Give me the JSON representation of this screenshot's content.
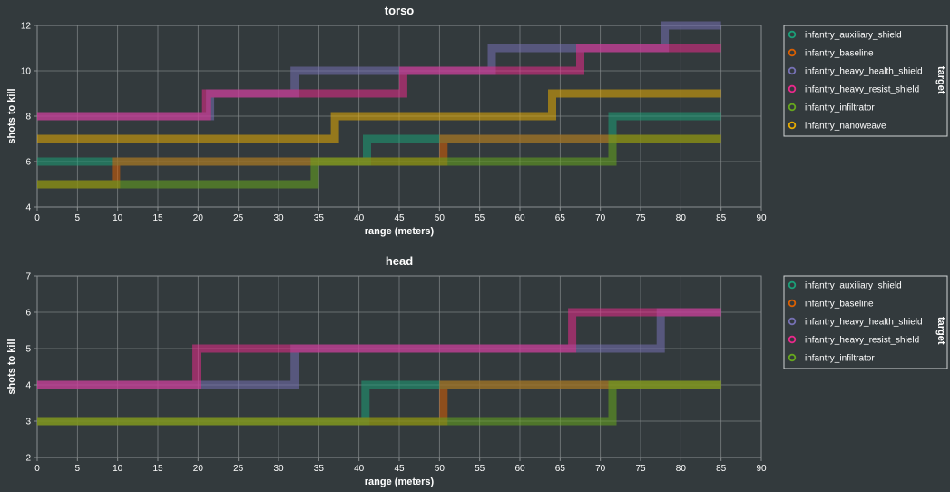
{
  "legend_title": "target",
  "colors": {
    "infantry_auxiliary_shield": "#1b9e77",
    "infantry_baseline": "#d95f02",
    "infantry_heavy_health_shield": "#7570b3",
    "infantry_heavy_resist_shield": "#e7298a",
    "infantry_infiltrator": "#66a61e",
    "infantry_nanoweave": "#e6ab02"
  },
  "chart_data": [
    {
      "type": "line",
      "step": true,
      "title": "torso",
      "xlabel": "range (meters)",
      "ylabel": "shots to kill",
      "xlim": [
        0,
        90
      ],
      "ylim": [
        4,
        12
      ],
      "xticks": [
        "0",
        "5",
        "10",
        "15",
        "20",
        "25",
        "30",
        "35",
        "40",
        "45",
        "50",
        "55",
        "60",
        "65",
        "70",
        "75",
        "80",
        "85",
        "90"
      ],
      "yticks": [
        "4",
        "6",
        "8",
        "10",
        "12"
      ],
      "grid": true,
      "legend": "right",
      "series": [
        {
          "name": "infantry_auxiliary_shield",
          "points": [
            [
              0,
              6
            ],
            [
              41,
              6
            ],
            [
              41,
              7
            ],
            [
              71.5,
              7
            ],
            [
              71.5,
              8
            ],
            [
              85,
              8
            ]
          ]
        },
        {
          "name": "infantry_baseline",
          "points": [
            [
              0,
              5
            ],
            [
              9.8,
              5
            ],
            [
              9.8,
              6
            ],
            [
              50.5,
              6
            ],
            [
              50.5,
              7
            ],
            [
              85,
              7
            ]
          ]
        },
        {
          "name": "infantry_heavy_health_shield",
          "points": [
            [
              0,
              8
            ],
            [
              21.5,
              8
            ],
            [
              21.5,
              9
            ],
            [
              32,
              9
            ],
            [
              32,
              10
            ],
            [
              56.5,
              10
            ],
            [
              56.5,
              11
            ],
            [
              78,
              11
            ],
            [
              78,
              12
            ],
            [
              85,
              12
            ]
          ]
        },
        {
          "name": "infantry_heavy_resist_shield",
          "points": [
            [
              0,
              8
            ],
            [
              21,
              8
            ],
            [
              21,
              9
            ],
            [
              45.5,
              9
            ],
            [
              45.5,
              10
            ],
            [
              67.5,
              10
            ],
            [
              67.5,
              11
            ],
            [
              85,
              11
            ]
          ]
        },
        {
          "name": "infantry_infiltrator",
          "points": [
            [
              0,
              5
            ],
            [
              34.5,
              5
            ],
            [
              34.5,
              6
            ],
            [
              71.5,
              6
            ],
            [
              71.5,
              7
            ],
            [
              85,
              7
            ]
          ]
        },
        {
          "name": "infantry_nanoweave",
          "points": [
            [
              0,
              7
            ],
            [
              37,
              7
            ],
            [
              37,
              8
            ],
            [
              64,
              8
            ],
            [
              64,
              9
            ],
            [
              85,
              9
            ]
          ]
        }
      ]
    },
    {
      "type": "line",
      "step": true,
      "title": "head",
      "xlabel": "range (meters)",
      "ylabel": "shots to kill",
      "xlim": [
        0,
        90
      ],
      "ylim": [
        2,
        7
      ],
      "xticks": [
        "0",
        "5",
        "10",
        "15",
        "20",
        "25",
        "30",
        "35",
        "40",
        "45",
        "50",
        "55",
        "60",
        "65",
        "70",
        "75",
        "80",
        "85",
        "90"
      ],
      "yticks": [
        "2",
        "3",
        "4",
        "5",
        "6",
        "7"
      ],
      "grid": true,
      "legend": "right",
      "series": [
        {
          "name": "infantry_auxiliary_shield",
          "points": [
            [
              0,
              3
            ],
            [
              40.8,
              3
            ],
            [
              40.8,
              4
            ],
            [
              85,
              4
            ]
          ]
        },
        {
          "name": "infantry_baseline",
          "points": [
            [
              0,
              3
            ],
            [
              50.5,
              3
            ],
            [
              50.5,
              4
            ],
            [
              85,
              4
            ]
          ]
        },
        {
          "name": "infantry_heavy_health_shield",
          "points": [
            [
              0,
              4
            ],
            [
              32,
              4
            ],
            [
              32,
              5
            ],
            [
              77.5,
              5
            ],
            [
              77.5,
              6
            ],
            [
              85,
              6
            ]
          ]
        },
        {
          "name": "infantry_heavy_resist_shield",
          "points": [
            [
              0,
              4
            ],
            [
              19.8,
              4
            ],
            [
              19.8,
              5
            ],
            [
              66.5,
              5
            ],
            [
              66.5,
              6
            ],
            [
              85,
              6
            ]
          ]
        },
        {
          "name": "infantry_infiltrator",
          "points": [
            [
              0,
              3
            ],
            [
              71.5,
              3
            ],
            [
              71.5,
              4
            ],
            [
              85,
              4
            ]
          ]
        }
      ]
    }
  ]
}
